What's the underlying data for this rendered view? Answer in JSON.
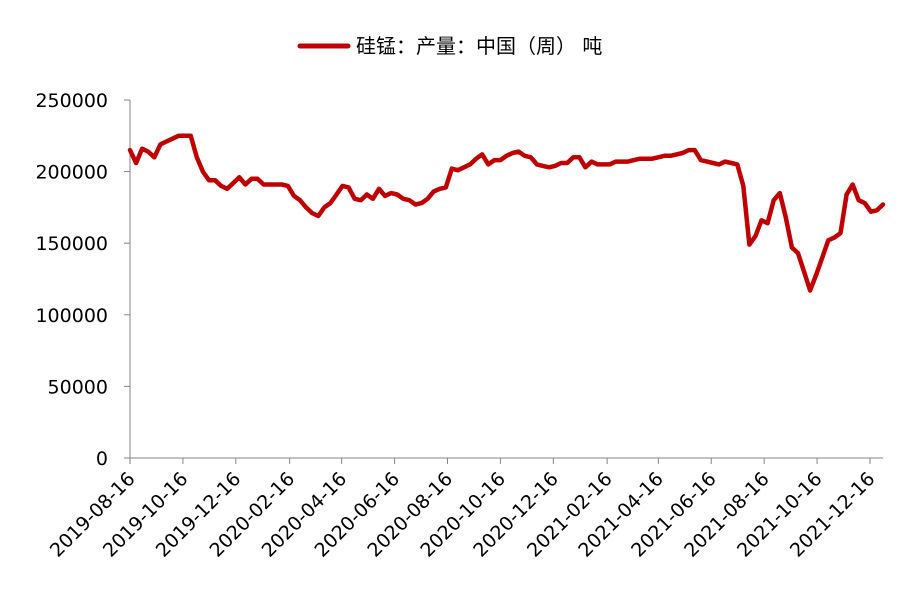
{
  "chart_data": {
    "type": "line",
    "title": "",
    "xlabel": "",
    "ylabel": "",
    "legend": {
      "position": "top-center"
    },
    "grid": false,
    "ylim": [
      0,
      250000
    ],
    "y_ticks": [
      "0",
      "50000",
      "100000",
      "150000",
      "200000",
      "250000"
    ],
    "x_ticks": [
      "2019-08-16",
      "2019-10-16",
      "2019-12-16",
      "2020-02-16",
      "2020-04-16",
      "2020-06-16",
      "2020-08-16",
      "2020-10-16",
      "2020-12-16",
      "2021-02-16",
      "2021-04-16",
      "2021-06-16",
      "2021-08-16",
      "2021-10-16",
      "2021-12-16"
    ],
    "xlim": [
      "2019-08-16",
      "2021-12-24"
    ],
    "series": [
      {
        "name": "硅锰：产量：中国（周） 吨",
        "color": "#c00000",
        "points": [
          [
            "2019-08-16",
            215000
          ],
          [
            "2019-08-23",
            206000
          ],
          [
            "2019-08-30",
            216000
          ],
          [
            "2019-09-06",
            214000
          ],
          [
            "2019-09-13",
            210000
          ],
          [
            "2019-09-20",
            219000
          ],
          [
            "2019-09-27",
            221000
          ],
          [
            "2019-10-04",
            223000
          ],
          [
            "2019-10-11",
            225000
          ],
          [
            "2019-10-18",
            225000
          ],
          [
            "2019-10-25",
            225000
          ],
          [
            "2019-11-01",
            210000
          ],
          [
            "2019-11-08",
            200000
          ],
          [
            "2019-11-15",
            194000
          ],
          [
            "2019-11-22",
            194000
          ],
          [
            "2019-11-29",
            190000
          ],
          [
            "2019-12-06",
            188000
          ],
          [
            "2019-12-13",
            192000
          ],
          [
            "2019-12-20",
            196000
          ],
          [
            "2019-12-27",
            191000
          ],
          [
            "2020-01-03",
            195000
          ],
          [
            "2020-01-10",
            195000
          ],
          [
            "2020-01-17",
            191000
          ],
          [
            "2020-01-24",
            191000
          ],
          [
            "2020-01-31",
            191000
          ],
          [
            "2020-02-07",
            191000
          ],
          [
            "2020-02-14",
            190000
          ],
          [
            "2020-02-21",
            183000
          ],
          [
            "2020-02-28",
            180000
          ],
          [
            "2020-03-06",
            175000
          ],
          [
            "2020-03-13",
            171000
          ],
          [
            "2020-03-20",
            169000
          ],
          [
            "2020-03-27",
            175000
          ],
          [
            "2020-04-03",
            178000
          ],
          [
            "2020-04-10",
            184000
          ],
          [
            "2020-04-17",
            190000
          ],
          [
            "2020-04-24",
            189000
          ],
          [
            "2020-05-01",
            181000
          ],
          [
            "2020-05-08",
            180000
          ],
          [
            "2020-05-15",
            184000
          ],
          [
            "2020-05-22",
            181000
          ],
          [
            "2020-05-29",
            188000
          ],
          [
            "2020-06-05",
            183000
          ],
          [
            "2020-06-12",
            185000
          ],
          [
            "2020-06-19",
            184000
          ],
          [
            "2020-06-26",
            181000
          ],
          [
            "2020-07-03",
            180000
          ],
          [
            "2020-07-10",
            177000
          ],
          [
            "2020-07-17",
            178000
          ],
          [
            "2020-07-24",
            181000
          ],
          [
            "2020-07-31",
            186000
          ],
          [
            "2020-08-07",
            188000
          ],
          [
            "2020-08-14",
            189000
          ],
          [
            "2020-08-21",
            202000
          ],
          [
            "2020-08-28",
            201000
          ],
          [
            "2020-09-04",
            203000
          ],
          [
            "2020-09-11",
            205000
          ],
          [
            "2020-09-18",
            209000
          ],
          [
            "2020-09-25",
            212000
          ],
          [
            "2020-10-02",
            205000
          ],
          [
            "2020-10-09",
            208000
          ],
          [
            "2020-10-16",
            208000
          ],
          [
            "2020-10-23",
            211000
          ],
          [
            "2020-10-30",
            213000
          ],
          [
            "2020-11-06",
            214000
          ],
          [
            "2020-11-13",
            211000
          ],
          [
            "2020-11-20",
            210000
          ],
          [
            "2020-11-27",
            205000
          ],
          [
            "2020-12-04",
            204000
          ],
          [
            "2020-12-11",
            203000
          ],
          [
            "2020-12-18",
            204000
          ],
          [
            "2020-12-25",
            206000
          ],
          [
            "2021-01-01",
            206000
          ],
          [
            "2021-01-08",
            210000
          ],
          [
            "2021-01-15",
            210000
          ],
          [
            "2021-01-22",
            203000
          ],
          [
            "2021-01-29",
            207000
          ],
          [
            "2021-02-05",
            205000
          ],
          [
            "2021-02-12",
            205000
          ],
          [
            "2021-02-19",
            205000
          ],
          [
            "2021-02-26",
            207000
          ],
          [
            "2021-03-05",
            207000
          ],
          [
            "2021-03-12",
            207000
          ],
          [
            "2021-03-19",
            208000
          ],
          [
            "2021-03-26",
            209000
          ],
          [
            "2021-04-02",
            209000
          ],
          [
            "2021-04-09",
            209000
          ],
          [
            "2021-04-16",
            210000
          ],
          [
            "2021-04-23",
            211000
          ],
          [
            "2021-04-30",
            211000
          ],
          [
            "2021-05-07",
            212000
          ],
          [
            "2021-05-14",
            213000
          ],
          [
            "2021-05-21",
            215000
          ],
          [
            "2021-05-28",
            215000
          ],
          [
            "2021-06-04",
            208000
          ],
          [
            "2021-06-11",
            207000
          ],
          [
            "2021-06-18",
            206000
          ],
          [
            "2021-06-25",
            205000
          ],
          [
            "2021-07-02",
            207000
          ],
          [
            "2021-07-09",
            206000
          ],
          [
            "2021-07-16",
            205000
          ],
          [
            "2021-07-23",
            190000
          ],
          [
            "2021-07-30",
            149000
          ],
          [
            "2021-08-06",
            155000
          ],
          [
            "2021-08-13",
            166000
          ],
          [
            "2021-08-20",
            164000
          ],
          [
            "2021-08-27",
            180000
          ],
          [
            "2021-09-03",
            185000
          ],
          [
            "2021-09-10",
            168000
          ],
          [
            "2021-09-17",
            147000
          ],
          [
            "2021-09-24",
            143000
          ],
          [
            "2021-10-01",
            130000
          ],
          [
            "2021-10-08",
            117000
          ],
          [
            "2021-10-15",
            128000
          ],
          [
            "2021-10-22",
            140000
          ],
          [
            "2021-10-29",
            152000
          ],
          [
            "2021-11-05",
            154000
          ],
          [
            "2021-11-12",
            157000
          ],
          [
            "2021-11-19",
            184000
          ],
          [
            "2021-11-26",
            191000
          ],
          [
            "2021-12-03",
            180000
          ],
          [
            "2021-12-10",
            178000
          ],
          [
            "2021-12-17",
            172000
          ],
          [
            "2021-12-24",
            173000
          ],
          [
            "2021-12-31",
            177000
          ]
        ]
      }
    ]
  }
}
